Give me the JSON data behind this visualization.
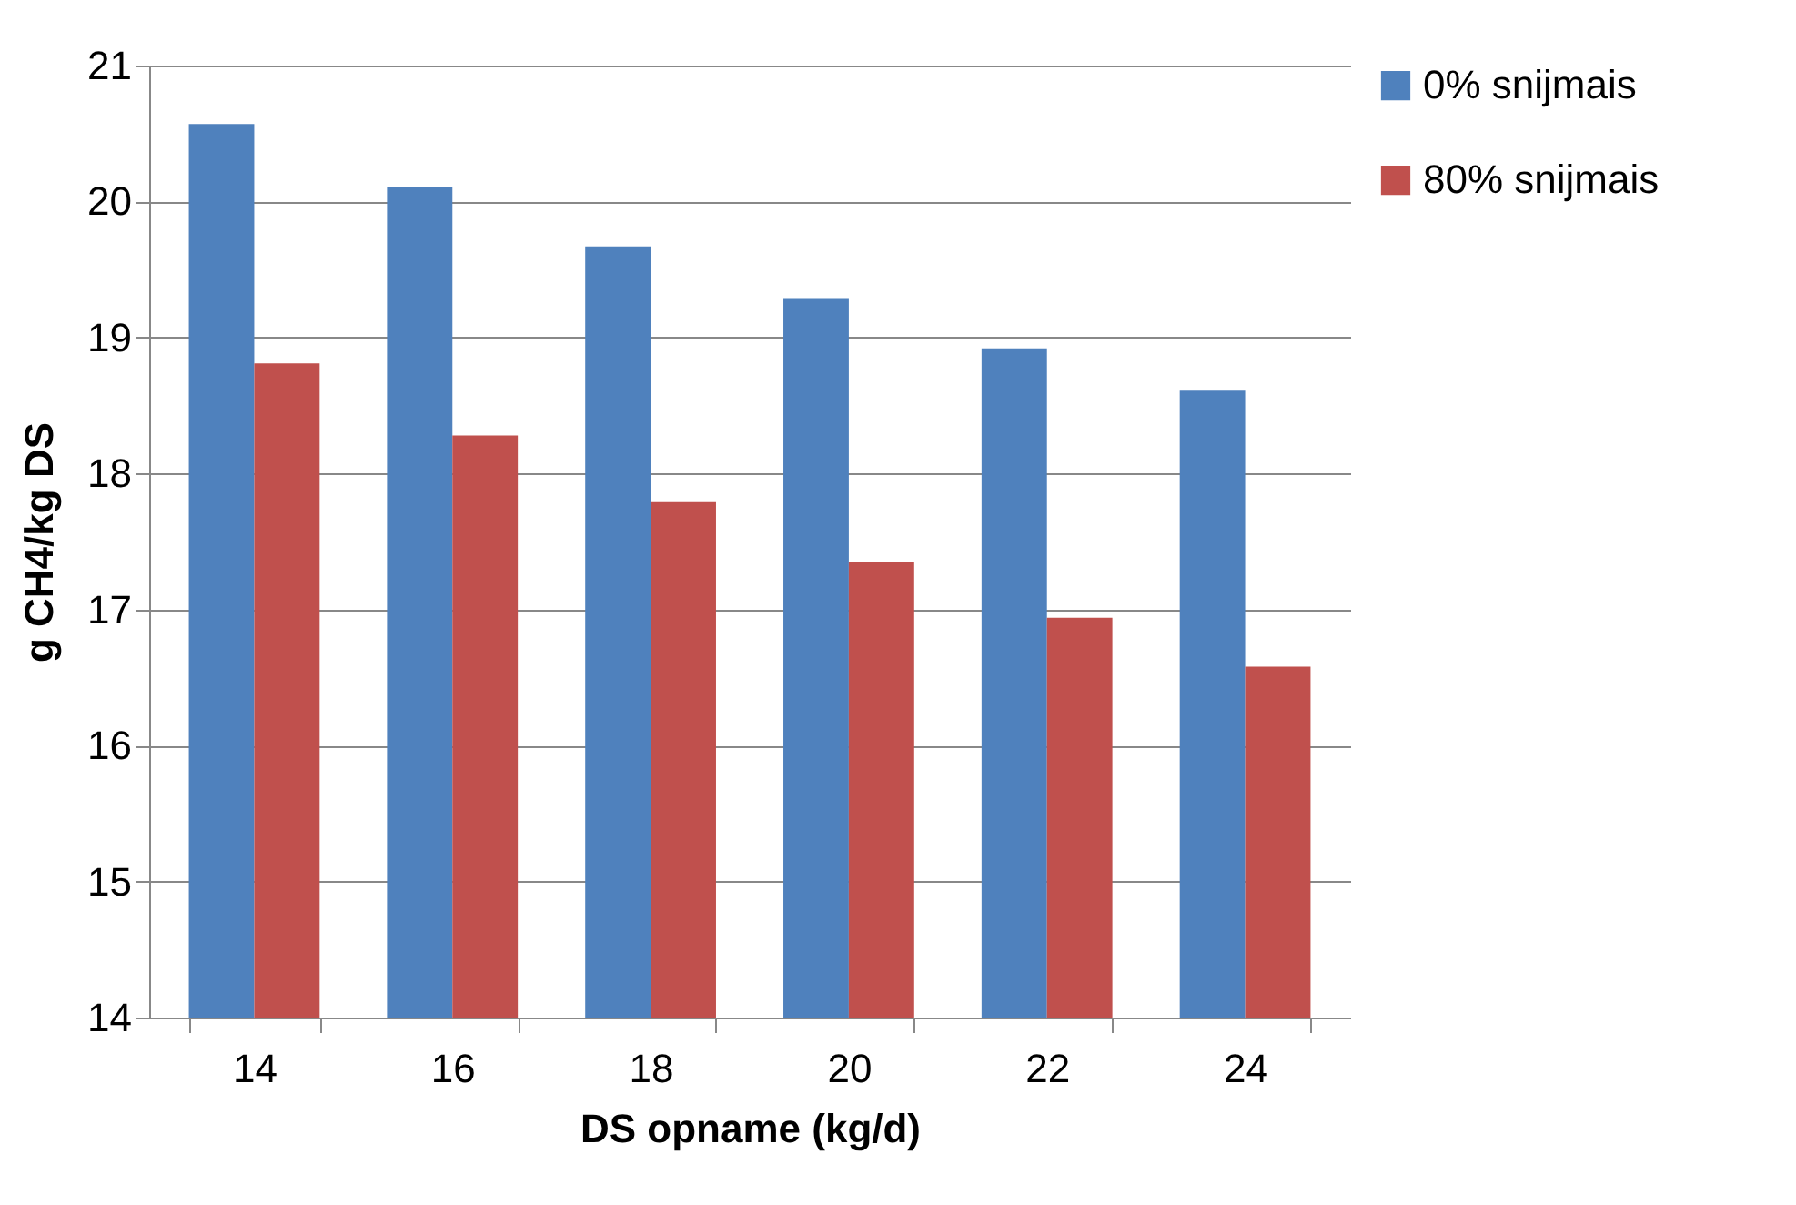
{
  "chart_data": {
    "type": "bar",
    "xlabel": "DS opname (kg/d)",
    "ylabel": "g CH4/kg DS",
    "categories": [
      "14",
      "16",
      "18",
      "20",
      "22",
      "24"
    ],
    "series": [
      {
        "name": "0% snijmais",
        "color": "#4f81bd",
        "values": [
          20.57,
          20.11,
          19.67,
          19.29,
          18.92,
          18.61
        ]
      },
      {
        "name": "80% snijmais",
        "color": "#c0504d",
        "values": [
          18.81,
          18.28,
          17.79,
          17.35,
          16.94,
          16.58
        ]
      }
    ],
    "ylim": [
      14,
      21
    ],
    "yticks": [
      14,
      15,
      16,
      17,
      18,
      19,
      20,
      21
    ],
    "grid": "y",
    "legend": "top right"
  }
}
